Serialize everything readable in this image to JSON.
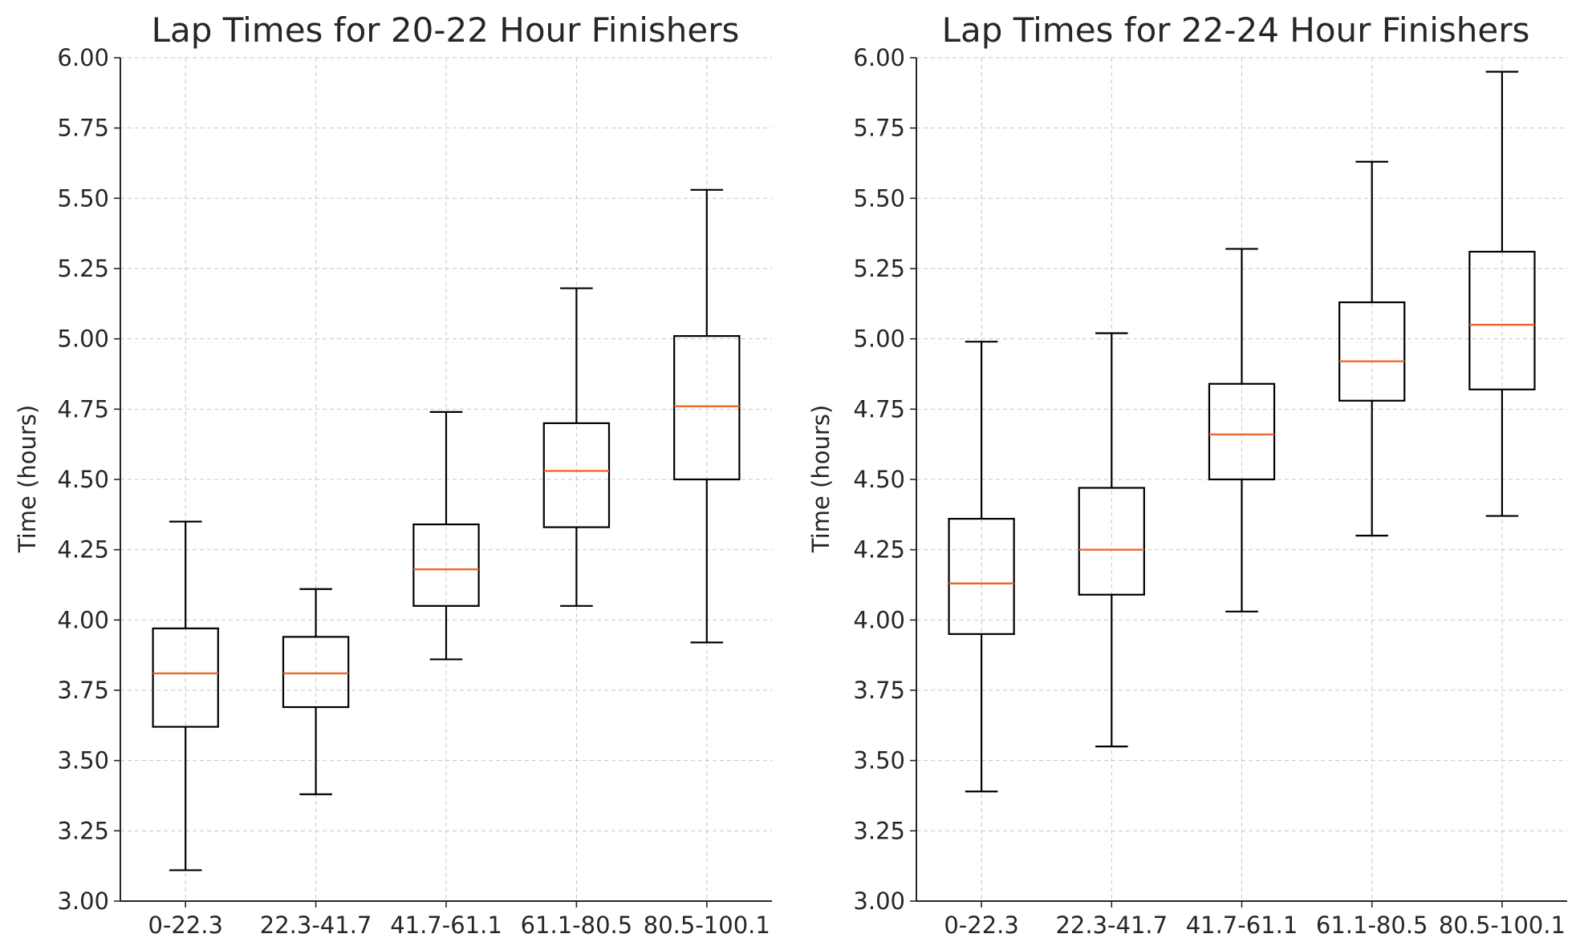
{
  "chart_data": [
    {
      "type": "box",
      "title": "Lap Times for 20-22 Hour Finishers",
      "ylabel": "Time (hours)",
      "xlabel": "",
      "ylim": [
        3.0,
        6.0
      ],
      "yticks": [
        "3.00",
        "3.25",
        "3.50",
        "3.75",
        "4.00",
        "4.25",
        "4.50",
        "4.75",
        "5.00",
        "5.25",
        "5.50",
        "5.75",
        "6.00"
      ],
      "grid": true,
      "categories": [
        "0-22.3",
        "22.3-41.7",
        "41.7-61.1",
        "61.1-80.5",
        "80.5-100.1"
      ],
      "boxes": [
        {
          "whisker_low": 3.11,
          "q1": 3.62,
          "median": 3.81,
          "q3": 3.97,
          "whisker_high": 4.35
        },
        {
          "whisker_low": 3.38,
          "q1": 3.69,
          "median": 3.81,
          "q3": 3.94,
          "whisker_high": 4.11
        },
        {
          "whisker_low": 3.86,
          "q1": 4.05,
          "median": 4.18,
          "q3": 4.34,
          "whisker_high": 4.74
        },
        {
          "whisker_low": 4.05,
          "q1": 4.33,
          "median": 4.53,
          "q3": 4.7,
          "whisker_high": 5.18
        },
        {
          "whisker_low": 3.92,
          "q1": 4.5,
          "median": 4.76,
          "q3": 5.01,
          "whisker_high": 5.53
        }
      ]
    },
    {
      "type": "box",
      "title": "Lap Times for 22-24 Hour Finishers",
      "ylabel": "Time (hours)",
      "xlabel": "",
      "ylim": [
        3.0,
        6.0
      ],
      "yticks": [
        "3.00",
        "3.25",
        "3.50",
        "3.75",
        "4.00",
        "4.25",
        "4.50",
        "4.75",
        "5.00",
        "5.25",
        "5.50",
        "5.75",
        "6.00"
      ],
      "grid": true,
      "categories": [
        "0-22.3",
        "22.3-41.7",
        "41.7-61.1",
        "61.1-80.5",
        "80.5-100.1"
      ],
      "boxes": [
        {
          "whisker_low": 3.39,
          "q1": 3.95,
          "median": 4.13,
          "q3": 4.36,
          "whisker_high": 4.99
        },
        {
          "whisker_low": 3.55,
          "q1": 4.09,
          "median": 4.25,
          "q3": 4.47,
          "whisker_high": 5.02
        },
        {
          "whisker_low": 4.03,
          "q1": 4.5,
          "median": 4.66,
          "q3": 4.84,
          "whisker_high": 5.32
        },
        {
          "whisker_low": 4.3,
          "q1": 4.78,
          "median": 4.92,
          "q3": 5.13,
          "whisker_high": 5.63
        },
        {
          "whisker_low": 4.37,
          "q1": 4.82,
          "median": 5.05,
          "q3": 5.31,
          "whisker_high": 5.95
        }
      ]
    }
  ]
}
